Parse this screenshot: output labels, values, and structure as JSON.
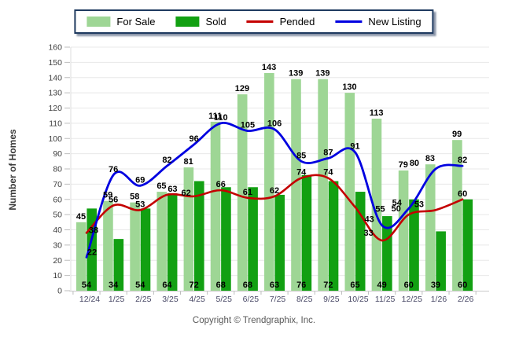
{
  "legend": {
    "items": [
      {
        "label": "For Sale",
        "swatch": "bar",
        "color": "#9ED695"
      },
      {
        "label": "Sold",
        "swatch": "bar",
        "color": "#12A012"
      },
      {
        "label": "Pended",
        "swatch": "line",
        "color": "#C40000"
      },
      {
        "label": "New Listing",
        "swatch": "line",
        "color": "#0000E0"
      }
    ]
  },
  "footer": {
    "text": "Copyright © Trendgraphix, Inc."
  },
  "chart_data": {
    "type": "bar",
    "subtype": "combo bar + smooth line",
    "title": "",
    "xlabel": "",
    "ylabel": "Number of Homes",
    "ylim": [
      0,
      160
    ],
    "ytick_step": 10,
    "yticks": [
      0,
      10,
      20,
      30,
      40,
      50,
      60,
      70,
      80,
      90,
      100,
      110,
      120,
      130,
      140,
      150,
      160
    ],
    "grid": true,
    "legend_position": "top",
    "categories": [
      "12/24",
      "1/25",
      "2/25",
      "3/25",
      "4/25",
      "5/25",
      "6/25",
      "7/25",
      "8/25",
      "9/25",
      "10/25",
      "11/25",
      "12/25",
      "1/26",
      "2/26"
    ],
    "series": [
      {
        "name": "For Sale",
        "kind": "bar",
        "color": "#9ED695",
        "values": [
          45,
          59,
          58,
          65,
          81,
          111,
          129,
          143,
          139,
          139,
          130,
          113,
          79,
          83,
          99
        ]
      },
      {
        "name": "Sold",
        "kind": "bar",
        "color": "#12A012",
        "values": [
          54,
          34,
          54,
          64,
          72,
          68,
          68,
          63,
          76,
          72,
          65,
          49,
          60,
          39,
          60
        ]
      },
      {
        "name": "Pended",
        "kind": "line",
        "color": "#C40000",
        "values": [
          38,
          56,
          53,
          63,
          62,
          66,
          61,
          62,
          74,
          74,
          55,
          33,
          50,
          53,
          60
        ]
      },
      {
        "name": "New Listing",
        "kind": "line",
        "color": "#0000E0",
        "values": [
          22,
          76,
          69,
          82,
          96,
          110,
          105,
          106,
          85,
          87,
          91,
          43,
          54,
          80,
          82
        ]
      }
    ]
  }
}
